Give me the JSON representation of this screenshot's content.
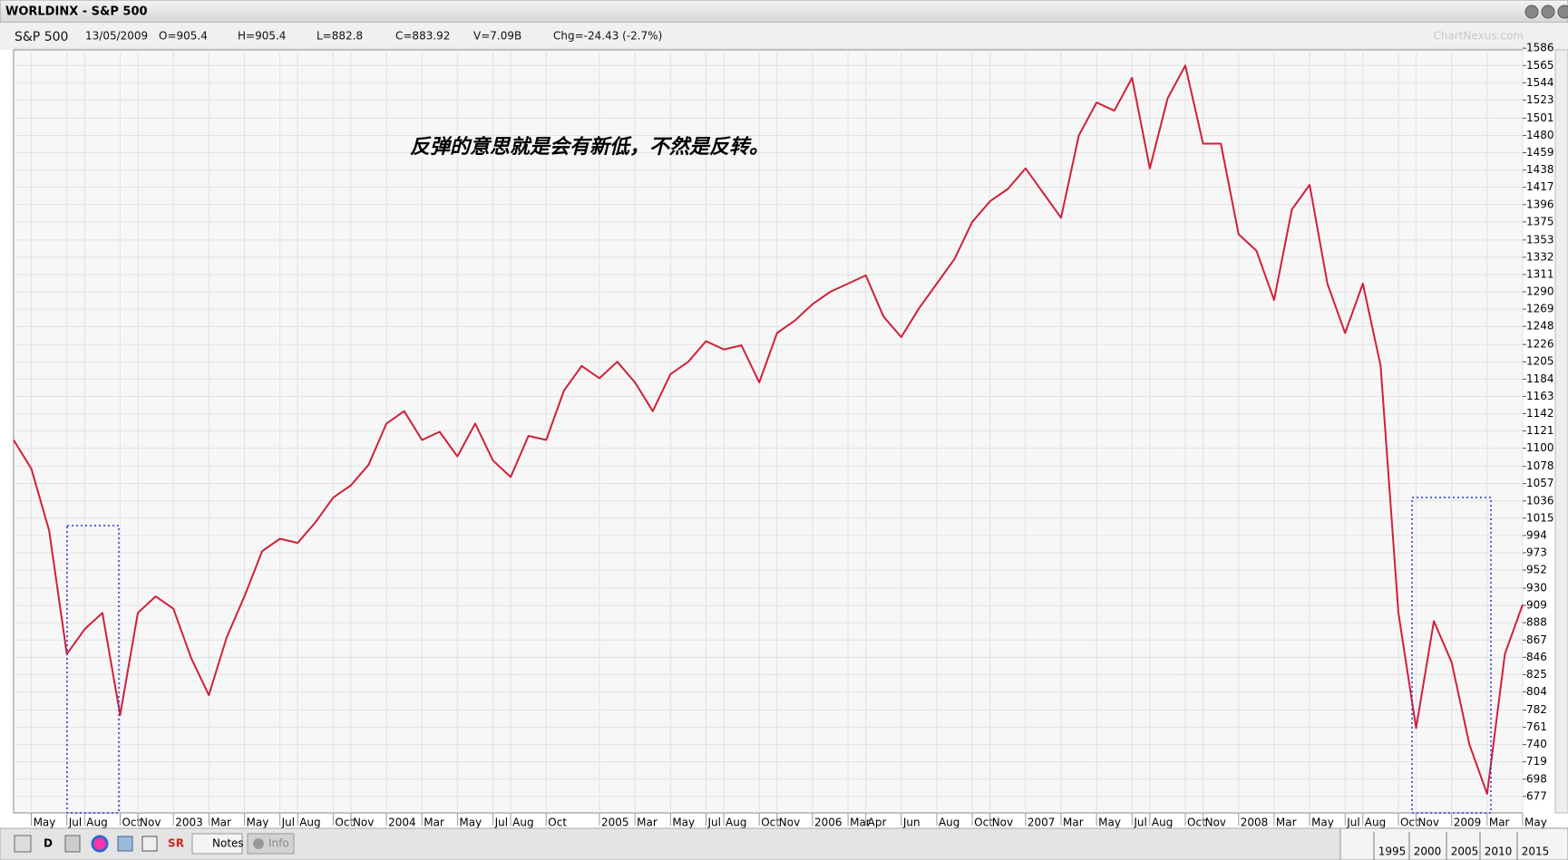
{
  "window": {
    "title": "WORLDINX - S&P 500"
  },
  "header": {
    "symbol": "S&P 500",
    "date": "13/05/2009",
    "open": "O=905.4",
    "high": "H=905.4",
    "low": "L=882.8",
    "close": "C=883.92",
    "volume": "V=7.09B",
    "change": "Chg=-24.43 (-2.7%)"
  },
  "watermark": "ChartNexus.com",
  "toolbar": {
    "period": "D",
    "sr": "SR",
    "notes": "Notes",
    "info": "Info"
  },
  "timeline": {
    "years": [
      "1995",
      "2000",
      "2005",
      "2010",
      "2015"
    ]
  },
  "chart_data": {
    "type": "line",
    "annotation": "反弹的意思就是会有新低，不然是反转。",
    "color": "#d0203a",
    "grid": true,
    "x": [
      "2002-04",
      "2002-05",
      "2002-06",
      "2002-07",
      "2002-08",
      "2002-09",
      "2002-10",
      "2002-11",
      "2002-12",
      "2003-01",
      "2003-02",
      "2003-03",
      "2003-04",
      "2003-05",
      "2003-06",
      "2003-07",
      "2003-08",
      "2003-09",
      "2003-10",
      "2003-11",
      "2003-12",
      "2004-01",
      "2004-02",
      "2004-03",
      "2004-04",
      "2004-05",
      "2004-06",
      "2004-07",
      "2004-08",
      "2004-09",
      "2004-10",
      "2004-11",
      "2004-12",
      "2005-01",
      "2005-02",
      "2005-03",
      "2005-04",
      "2005-05",
      "2005-06",
      "2005-07",
      "2005-08",
      "2005-09",
      "2005-10",
      "2005-11",
      "2005-12",
      "2006-01",
      "2006-02",
      "2006-03",
      "2006-04",
      "2006-05",
      "2006-06",
      "2006-07",
      "2006-08",
      "2006-09",
      "2006-10",
      "2006-11",
      "2006-12",
      "2007-01",
      "2007-02",
      "2007-03",
      "2007-04",
      "2007-05",
      "2007-06",
      "2007-07",
      "2007-08",
      "2007-09",
      "2007-10",
      "2007-11",
      "2007-12",
      "2008-01",
      "2008-02",
      "2008-03",
      "2008-04",
      "2008-05",
      "2008-06",
      "2008-07",
      "2008-08",
      "2008-09",
      "2008-10",
      "2008-11",
      "2008-12",
      "2009-01",
      "2009-02",
      "2009-03",
      "2009-04",
      "2009-05"
    ],
    "values": [
      1110,
      1075,
      1000,
      850,
      880,
      900,
      776,
      900,
      920,
      905,
      845,
      800,
      870,
      920,
      975,
      990,
      985,
      1010,
      1040,
      1055,
      1080,
      1130,
      1145,
      1110,
      1120,
      1090,
      1130,
      1085,
      1065,
      1115,
      1110,
      1170,
      1200,
      1185,
      1205,
      1180,
      1145,
      1190,
      1205,
      1230,
      1220,
      1225,
      1180,
      1240,
      1255,
      1275,
      1290,
      1300,
      1310,
      1260,
      1235,
      1270,
      1300,
      1330,
      1375,
      1400,
      1415,
      1440,
      1410,
      1380,
      1480,
      1520,
      1510,
      1550,
      1440,
      1525,
      1565,
      1470,
      1470,
      1360,
      1340,
      1280,
      1390,
      1420,
      1300,
      1240,
      1300,
      1200,
      900,
      760,
      890,
      840,
      740,
      680,
      850,
      910
    ],
    "xlim": [
      "2002-04",
      "2009-05"
    ],
    "xticks": [
      {
        "value": "2002-05",
        "label": "May"
      },
      {
        "value": "2002-07",
        "label": "Jul"
      },
      {
        "value": "2002-08",
        "label": "Aug"
      },
      {
        "value": "2002-10",
        "label": "Oct"
      },
      {
        "value": "2002-11",
        "label": "Nov"
      },
      {
        "value": "2003-01",
        "label": "2003"
      },
      {
        "value": "2003-03",
        "label": "Mar"
      },
      {
        "value": "2003-05",
        "label": "May"
      },
      {
        "value": "2003-07",
        "label": "Jul"
      },
      {
        "value": "2003-08",
        "label": "Aug"
      },
      {
        "value": "2003-10",
        "label": "Oct"
      },
      {
        "value": "2003-11",
        "label": "Nov"
      },
      {
        "value": "2004-01",
        "label": "2004"
      },
      {
        "value": "2004-03",
        "label": "Mar"
      },
      {
        "value": "2004-05",
        "label": "May"
      },
      {
        "value": "2004-07",
        "label": "Jul"
      },
      {
        "value": "2004-08",
        "label": "Aug"
      },
      {
        "value": "2004-10",
        "label": "Oct"
      },
      {
        "value": "2005-01",
        "label": "2005"
      },
      {
        "value": "2005-03",
        "label": "Mar"
      },
      {
        "value": "2005-05",
        "label": "May"
      },
      {
        "value": "2005-07",
        "label": "Jul"
      },
      {
        "value": "2005-08",
        "label": "Aug"
      },
      {
        "value": "2005-10",
        "label": "Oct"
      },
      {
        "value": "2005-11",
        "label": "Nov"
      },
      {
        "value": "2006-01",
        "label": "2006"
      },
      {
        "value": "2006-03",
        "label": "Mar"
      },
      {
        "value": "2006-04",
        "label": "Apr"
      },
      {
        "value": "2006-06",
        "label": "Jun"
      },
      {
        "value": "2006-08",
        "label": "Aug"
      },
      {
        "value": "2006-10",
        "label": "Oct"
      },
      {
        "value": "2006-11",
        "label": "Nov"
      },
      {
        "value": "2007-01",
        "label": "2007"
      },
      {
        "value": "2007-03",
        "label": "Mar"
      },
      {
        "value": "2007-05",
        "label": "May"
      },
      {
        "value": "2007-07",
        "label": "Jul"
      },
      {
        "value": "2007-08",
        "label": "Aug"
      },
      {
        "value": "2007-10",
        "label": "Oct"
      },
      {
        "value": "2007-11",
        "label": "Nov"
      },
      {
        "value": "2008-01",
        "label": "2008"
      },
      {
        "value": "2008-03",
        "label": "Mar"
      },
      {
        "value": "2008-05",
        "label": "May"
      },
      {
        "value": "2008-07",
        "label": "Jul"
      },
      {
        "value": "2008-08",
        "label": "Aug"
      },
      {
        "value": "2008-10",
        "label": "Oct"
      },
      {
        "value": "2008-11",
        "label": "Nov"
      },
      {
        "value": "2009-01",
        "label": "2009"
      },
      {
        "value": "2009-03",
        "label": "Mar"
      },
      {
        "value": "2009-05",
        "label": "May"
      }
    ],
    "ylim": [
      657,
      1584
    ],
    "yticks": [
      1586,
      1565,
      1544,
      1523,
      1501,
      1480,
      1459,
      1438,
      1417,
      1396,
      1375,
      1353,
      1332,
      1311,
      1290,
      1269,
      1248,
      1226,
      1205,
      1184,
      1163,
      1142,
      1121,
      1100,
      1078,
      1057,
      1036,
      1015,
      994,
      973,
      952,
      930,
      909,
      888,
      867,
      846,
      825,
      804,
      782,
      761,
      740,
      719,
      698,
      677
    ]
  }
}
